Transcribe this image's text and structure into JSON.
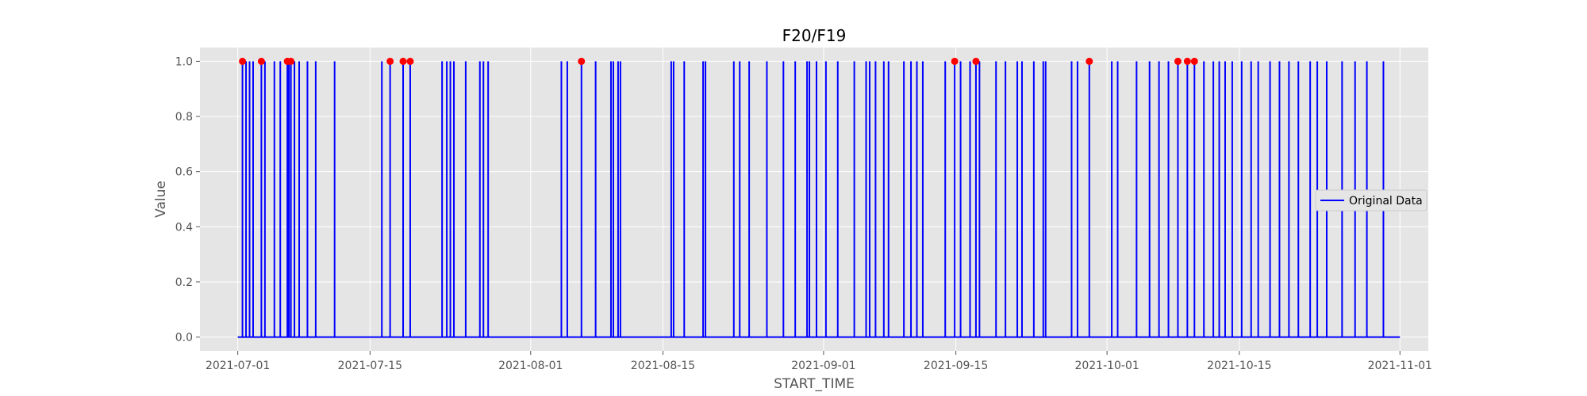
{
  "chart_data": {
    "type": "line",
    "title": "F20/F19",
    "xlabel": "START_TIME",
    "ylabel": "Value",
    "xlim": [
      "2021-06-27",
      "2021-11-04"
    ],
    "ylim": [
      -0.05,
      1.05
    ],
    "x_ticks": [
      "2021-07-01",
      "2021-07-15",
      "2021-08-01",
      "2021-08-15",
      "2021-09-01",
      "2021-09-15",
      "2021-10-01",
      "2021-10-15",
      "2021-11-01"
    ],
    "y_ticks": [
      0.0,
      0.2,
      0.4,
      0.6,
      0.8,
      1.0
    ],
    "y_tick_labels": [
      "0.0",
      "0.2",
      "0.4",
      "0.6",
      "0.8",
      "1.0"
    ],
    "grid": true,
    "legend_position": "center-right",
    "series": [
      {
        "name": "Original Data",
        "color": "#0000ff",
        "start": "2021-07-01",
        "end": "2021-11-01",
        "baseline": 0,
        "spikes_at_1": [
          "2021-07-01 12:00",
          "2021-07-01 21:00",
          "2021-07-02 06:00",
          "2021-07-02 15:00",
          "2021-07-03 12:00",
          "2021-07-03 21:00",
          "2021-07-04 21:00",
          "2021-07-05 12:00",
          "2021-07-06 06:00",
          "2021-07-06 10:00",
          "2021-07-06 15:00",
          "2021-07-07 00:00",
          "2021-07-07 12:00",
          "2021-07-08 09:00",
          "2021-07-09 06:00",
          "2021-07-11 06:00",
          "2021-07-16 06:00",
          "2021-07-17 03:00",
          "2021-07-18 12:00",
          "2021-07-19 06:00",
          "2021-07-22 15:00",
          "2021-07-23 03:00",
          "2021-07-23 12:00",
          "2021-07-23 21:00",
          "2021-07-25 03:00",
          "2021-07-26 15:00",
          "2021-07-27 00:00",
          "2021-07-27 12:00",
          "2021-08-04 06:00",
          "2021-08-04 21:00",
          "2021-08-06 09:00",
          "2021-08-07 21:00",
          "2021-08-09 12:00",
          "2021-08-09 18:00",
          "2021-08-10 06:00",
          "2021-08-10 12:00",
          "2021-08-15 21:00",
          "2021-08-16 03:00",
          "2021-08-17 06:00",
          "2021-08-19 06:00",
          "2021-08-19 12:00",
          "2021-08-22 12:00",
          "2021-08-23 03:00",
          "2021-08-24 03:00",
          "2021-08-26 00:00",
          "2021-08-27 18:00",
          "2021-08-29 00:00",
          "2021-08-30 06:00",
          "2021-08-30 12:00",
          "2021-08-31 06:00",
          "2021-09-01 06:00",
          "2021-09-02 12:00",
          "2021-09-04 06:00",
          "2021-09-05 12:00",
          "2021-09-05 21:00",
          "2021-09-06 12:00",
          "2021-09-07 09:00",
          "2021-09-07 21:00",
          "2021-09-09 12:00",
          "2021-09-10 06:00",
          "2021-09-10 21:00",
          "2021-09-11 12:00",
          "2021-09-13 21:00",
          "2021-09-14 21:00",
          "2021-09-15 12:00",
          "2021-09-16 12:00",
          "2021-09-17 03:00",
          "2021-09-17 12:00",
          "2021-09-19 06:00",
          "2021-09-20 06:00",
          "2021-09-21 12:00",
          "2021-09-22 00:00",
          "2021-09-23 06:00",
          "2021-09-24 06:00",
          "2021-09-24 12:00",
          "2021-09-27 06:00",
          "2021-09-27 21:00",
          "2021-09-29 03:00",
          "2021-10-01 12:00",
          "2021-10-02 03:00",
          "2021-10-04 03:00",
          "2021-10-05 12:00",
          "2021-10-06 12:00",
          "2021-10-07 12:00",
          "2021-10-08 12:00",
          "2021-10-09 12:00",
          "2021-10-10 06:00",
          "2021-10-11 06:00",
          "2021-10-12 06:00",
          "2021-10-12 21:00",
          "2021-10-13 12:00",
          "2021-10-14 06:00",
          "2021-10-15 06:00",
          "2021-10-16 06:00",
          "2021-10-17 00:00",
          "2021-10-18 06:00",
          "2021-10-19 06:00",
          "2021-10-20 06:00",
          "2021-10-21 06:00",
          "2021-10-22 12:00",
          "2021-10-23 06:00",
          "2021-10-24 06:00",
          "2021-10-25 21:00",
          "2021-10-27 06:00",
          "2021-10-28 12:00",
          "2021-10-30 06:00"
        ]
      }
    ],
    "highlighted_points": {
      "color": "#ff0000",
      "y": 1.0,
      "x": [
        "2021-07-01 12:00",
        "2021-07-03 12:00",
        "2021-07-06 06:00",
        "2021-07-06 15:00",
        "2021-07-17 03:00",
        "2021-07-18 12:00",
        "2021-07-19 06:00",
        "2021-08-06 09:00",
        "2021-09-14 21:00",
        "2021-09-17 03:00",
        "2021-09-29 03:00",
        "2021-10-08 12:00",
        "2021-10-09 12:00",
        "2021-10-10 06:00"
      ]
    }
  }
}
